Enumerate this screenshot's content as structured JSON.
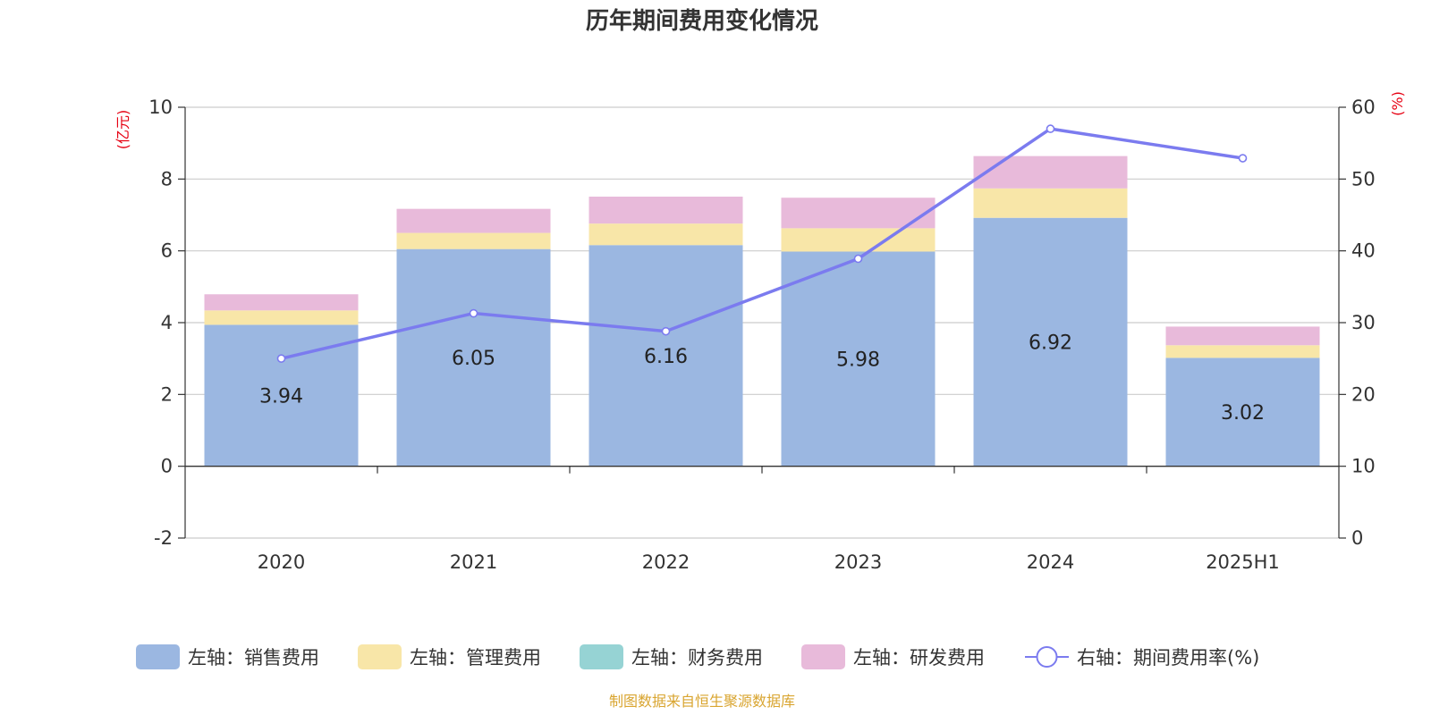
{
  "chart_data": {
    "type": "bar",
    "title": "历年期间费用变化情况",
    "categories": [
      "2020",
      "2021",
      "2022",
      "2023",
      "2024",
      "2025H1"
    ],
    "series": [
      {
        "name": "左轴：销售费用",
        "axis": "left",
        "kind": "bar",
        "color": "#9bb7e1",
        "values": [
          3.94,
          6.05,
          6.16,
          5.98,
          6.92,
          3.02
        ],
        "labels_shown": true
      },
      {
        "name": "左轴：管理费用",
        "axis": "left",
        "kind": "bar",
        "color": "#f8e6a8",
        "values": [
          0.4,
          0.45,
          0.6,
          0.65,
          0.82,
          0.35
        ]
      },
      {
        "name": "左轴：财务费用",
        "axis": "left",
        "kind": "bar",
        "color": "#96d3d4",
        "values": [
          0.0,
          0.0,
          0.0,
          0.0,
          0.0,
          0.0
        ]
      },
      {
        "name": "左轴：研发费用",
        "axis": "left",
        "kind": "bar",
        "color": "#e8bada",
        "values": [
          0.45,
          0.67,
          0.75,
          0.85,
          0.9,
          0.52
        ]
      },
      {
        "name": "右轴：期间费用率(%)",
        "axis": "right",
        "kind": "line",
        "color": "#7b7bef",
        "values": [
          25.0,
          31.3,
          28.8,
          38.9,
          57.0,
          52.9
        ]
      }
    ],
    "left_axis": {
      "unit_label": "(亿元)",
      "ylim": [
        -2,
        10
      ],
      "ticks": [
        -2,
        0,
        2,
        4,
        6,
        8,
        10
      ]
    },
    "right_axis": {
      "unit_label": "(%)",
      "ylim": [
        0,
        60
      ],
      "ticks": [
        0,
        10,
        20,
        30,
        40,
        50,
        60
      ]
    },
    "grid": true,
    "legend_position": "bottom"
  },
  "source_note": "制图数据来自恒生聚源数据库"
}
